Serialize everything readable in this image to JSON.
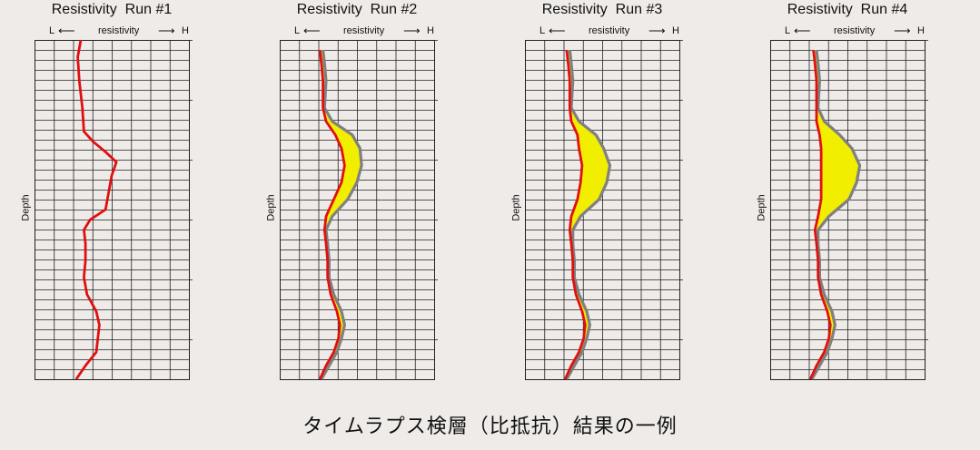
{
  "caption": "タイムラプス検層（比抵抗）結果の一例",
  "axis": {
    "low_label": "L",
    "high_label": "H",
    "title": "resistivity",
    "depth_label": "Depth"
  },
  "colors": {
    "background": "#efebe8",
    "grid": "#222222",
    "baseline_curve": "#e01010",
    "current_curve": "#808080",
    "change_fill": "#f2ee00"
  },
  "chart_data": [
    {
      "type": "line",
      "title": "Resistivity  Run #1",
      "xlabel": "resistivity",
      "ylabel": "Depth",
      "xlim": [
        0,
        10
      ],
      "ylim": [
        1,
        0
      ],
      "grid": true,
      "series": [
        {
          "role": "baseline",
          "depth": [
            0.0,
            0.05,
            0.12,
            0.2,
            0.27,
            0.3,
            0.33,
            0.36,
            0.4,
            0.45,
            0.5,
            0.53,
            0.56,
            0.6,
            0.65,
            0.7,
            0.75,
            0.8,
            0.84,
            0.88,
            0.92,
            0.96,
            1.0
          ],
          "values": [
            3.0,
            2.8,
            2.9,
            3.1,
            3.2,
            3.8,
            4.6,
            5.3,
            5.0,
            4.8,
            4.6,
            3.6,
            3.2,
            3.3,
            3.3,
            3.2,
            3.4,
            4.0,
            4.2,
            4.1,
            4.0,
            3.3,
            2.7
          ]
        }
      ]
    },
    {
      "type": "area",
      "title": "Resistivity  Run #2",
      "xlabel": "resistivity",
      "ylabel": "Depth",
      "xlim": [
        0,
        10
      ],
      "ylim": [
        1,
        0
      ],
      "grid": true,
      "series": [
        {
          "role": "baseline",
          "depth": [
            0.03,
            0.07,
            0.12,
            0.2,
            0.24,
            0.28,
            0.32,
            0.37,
            0.42,
            0.47,
            0.52,
            0.56,
            0.6,
            0.65,
            0.7,
            0.75,
            0.8,
            0.84,
            0.88,
            0.92,
            0.96,
            1.0
          ],
          "values": [
            2.6,
            2.7,
            2.8,
            2.8,
            3.0,
            3.6,
            4.0,
            4.2,
            4.0,
            3.5,
            3.0,
            2.9,
            3.0,
            3.1,
            3.1,
            3.3,
            3.7,
            3.9,
            3.8,
            3.5,
            3.0,
            2.6
          ]
        },
        {
          "role": "current",
          "depth": [
            0.03,
            0.07,
            0.12,
            0.2,
            0.24,
            0.28,
            0.32,
            0.37,
            0.42,
            0.47,
            0.52,
            0.56,
            0.6,
            0.65,
            0.7,
            0.75,
            0.8,
            0.84,
            0.88,
            0.92,
            0.96,
            1.0
          ],
          "values": [
            2.8,
            2.9,
            3.0,
            2.9,
            3.4,
            4.7,
            5.2,
            5.3,
            5.0,
            4.4,
            3.4,
            3.0,
            3.1,
            3.2,
            3.2,
            3.5,
            4.0,
            4.2,
            4.0,
            3.7,
            3.2,
            2.7
          ]
        }
      ]
    },
    {
      "type": "area",
      "title": "Resistivity  Run #3",
      "xlabel": "resistivity",
      "ylabel": "Depth",
      "xlim": [
        0,
        10
      ],
      "ylim": [
        1,
        0
      ],
      "grid": true,
      "series": [
        {
          "role": "baseline",
          "depth": [
            0.03,
            0.07,
            0.12,
            0.2,
            0.24,
            0.28,
            0.32,
            0.37,
            0.42,
            0.47,
            0.52,
            0.56,
            0.6,
            0.65,
            0.7,
            0.75,
            0.8,
            0.84,
            0.88,
            0.92,
            0.96,
            1.0
          ],
          "values": [
            2.7,
            2.8,
            2.9,
            2.9,
            3.0,
            3.4,
            3.5,
            3.7,
            3.6,
            3.4,
            3.0,
            2.9,
            3.0,
            3.1,
            3.1,
            3.3,
            3.7,
            3.9,
            3.8,
            3.5,
            3.0,
            2.6
          ]
        },
        {
          "role": "current",
          "depth": [
            0.03,
            0.07,
            0.12,
            0.2,
            0.24,
            0.28,
            0.32,
            0.37,
            0.42,
            0.47,
            0.52,
            0.56,
            0.6,
            0.65,
            0.7,
            0.75,
            0.8,
            0.84,
            0.88,
            0.92,
            0.96,
            1.0
          ],
          "values": [
            2.9,
            3.0,
            3.1,
            3.0,
            3.5,
            4.6,
            5.1,
            5.5,
            5.3,
            4.8,
            3.6,
            3.1,
            3.1,
            3.2,
            3.2,
            3.5,
            4.0,
            4.2,
            4.0,
            3.7,
            3.2,
            2.7
          ]
        }
      ]
    },
    {
      "type": "area",
      "title": "Resistivity  Run #4",
      "xlabel": "resistivity",
      "ylabel": "Depth",
      "xlim": [
        0,
        10
      ],
      "ylim": [
        1,
        0
      ],
      "grid": true,
      "series": [
        {
          "role": "baseline",
          "depth": [
            0.03,
            0.07,
            0.12,
            0.2,
            0.24,
            0.28,
            0.32,
            0.37,
            0.42,
            0.47,
            0.52,
            0.56,
            0.6,
            0.65,
            0.7,
            0.75,
            0.8,
            0.84,
            0.88,
            0.92,
            0.96,
            1.0
          ],
          "values": [
            2.8,
            2.9,
            3.0,
            3.0,
            3.0,
            3.2,
            3.3,
            3.3,
            3.3,
            3.3,
            3.1,
            2.9,
            3.0,
            3.1,
            3.1,
            3.3,
            3.7,
            3.9,
            3.8,
            3.5,
            3.0,
            2.6
          ]
        },
        {
          "role": "current",
          "depth": [
            0.03,
            0.07,
            0.12,
            0.2,
            0.24,
            0.28,
            0.32,
            0.37,
            0.42,
            0.47,
            0.52,
            0.56,
            0.6,
            0.65,
            0.7,
            0.75,
            0.8,
            0.84,
            0.88,
            0.92,
            0.96,
            1.0
          ],
          "values": [
            3.0,
            3.1,
            3.2,
            3.1,
            3.5,
            4.5,
            5.3,
            5.8,
            5.6,
            5.1,
            3.8,
            3.1,
            3.1,
            3.2,
            3.2,
            3.5,
            4.0,
            4.2,
            4.0,
            3.7,
            3.2,
            2.7
          ]
        }
      ]
    }
  ]
}
